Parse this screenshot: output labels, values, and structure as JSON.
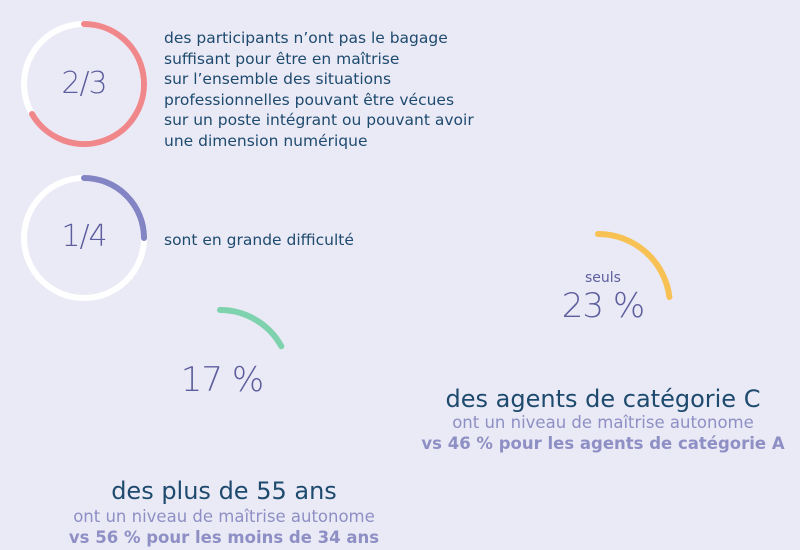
{
  "stats": [
    {
      "fraction": "2/3",
      "value": 0.6667,
      "color": "#f0878b",
      "lines": [
        "des participants n’ont pas le bagage",
        "suffisant pour être en maîtrise",
        "sur l’ensemble des situations",
        "professionnelles pouvant être vécues",
        "sur un poste intégrant ou pouvant avoir",
        "une dimension numérique"
      ]
    },
    {
      "fraction": "1/4",
      "value": 0.25,
      "color": "#8384c4",
      "lines": [
        "sont en grande difficulté"
      ]
    }
  ],
  "highlights": [
    {
      "value_label": "17 %",
      "value": 17,
      "color": "#7fd2ae",
      "heading": "des plus de 55 ans",
      "subtitle": "ont un niveau de maîtrise autonome",
      "comparison": "vs 56 % pour les moins de 34 ans"
    },
    {
      "prefix": "seuls",
      "value_label": "23 %",
      "value": 23,
      "color": "#f7c153",
      "heading": "des agents de catégorie C",
      "subtitle": "ont un niveau de maîtrise autonome",
      "comparison": "vs 46 % pour les agents de catégorie A"
    }
  ],
  "chart_data": [
    {
      "type": "pie",
      "categories": [
        "2/3"
      ],
      "values": [
        0.6667
      ]
    },
    {
      "type": "pie",
      "categories": [
        "1/4"
      ],
      "values": [
        0.25
      ]
    },
    {
      "type": "pie",
      "categories": [
        "17 %"
      ],
      "values": [
        17
      ]
    },
    {
      "type": "pie",
      "categories": [
        "23 %"
      ],
      "values": [
        23
      ]
    }
  ]
}
